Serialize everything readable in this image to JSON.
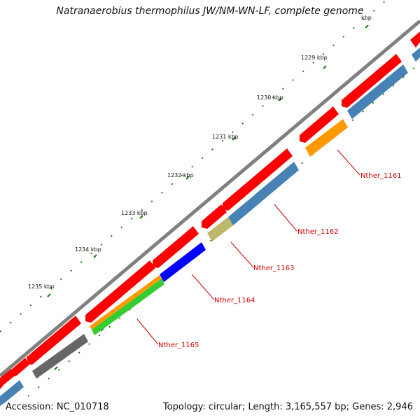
{
  "header": {
    "title": "Natranaerobius thermophilus JW/NM-WN-LF, complete genome"
  },
  "footer": {
    "accession": "Accession: NC_010718",
    "summary": "Topology: circular; Length: 3,165,557 bp; Genes: 2,946"
  },
  "scale": {
    "tick_labels": [
      "1235 kbp",
      "1234 kbp",
      "1233 kbp",
      "1232 kbp",
      "1231 kbp",
      "1230 kbp",
      "1229 kbp",
      "kbp"
    ]
  },
  "genes": {
    "labels": [
      "Nther_1161",
      "Nther_1162",
      "Nther_1163",
      "Nther_1164",
      "Nther_1165"
    ]
  },
  "colors": {
    "backbone": "#808080",
    "cds_forward": "#ff0000",
    "track_steel": "#4682b4",
    "track_orange": "#ff9900",
    "track_khaki": "#bdb76b",
    "track_blue": "#0000ff",
    "track_green": "#33cc33",
    "track_gray": "#666666",
    "tick": "#006400",
    "label": "#cc0000"
  }
}
